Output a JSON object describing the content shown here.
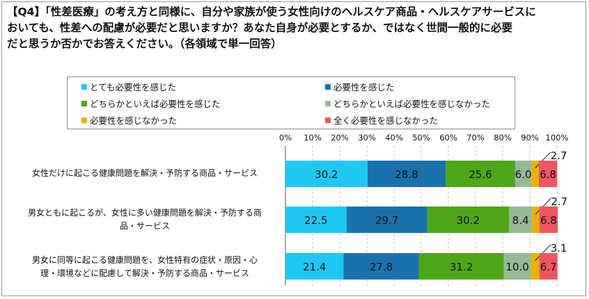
{
  "question": {
    "lines": [
      "【Q4】「性差医療」の考え方と同様に、自分や家族が使う女性向けのヘルスケア商品・ヘルスケアサービスに",
      "おいても、性差への配慮が必要だと思いますか？あなた自身が必要とするか、ではなく世間一般的に必要",
      "だと思うか否かでお答えください。（各領域で単一回答）"
    ]
  },
  "chart_data": {
    "type": "stacked-bar-horizontal",
    "xlim": [
      0,
      100
    ],
    "x_ticks": [
      "0%",
      "10%",
      "20%",
      "30%",
      "40%",
      "50%",
      "60%",
      "70%",
      "80%",
      "90%",
      "100%"
    ],
    "legend_position": "top",
    "categories": [
      "女性だけに起こる健康問題を解決・予防する商品・サービス",
      "男女ともに起こるが、女性に多い健康問題を解決・予防する商品・サービス",
      "男女に同等に起こる健康問題を、女性特有の症状・原因・心理・環境などに配慮して解決・予防する商品・サービス"
    ],
    "category_display_lines": [
      [
        "女性だけに起こる健康問題を解決・予防する商品・サービス"
      ],
      [
        "男女ともに起こるが、女性に多い健康問題を解決・予防する商",
        "品・サービス"
      ],
      [
        "男女に同等に起こる健康問題を、女性特有の症状・原因・心",
        "理・環境などに配慮して解決・予防する商品・サービス"
      ]
    ],
    "series": [
      {
        "name": "とても必要性を感じた",
        "color": "#1fc8f2",
        "values": [
          30.2,
          22.5,
          21.4
        ]
      },
      {
        "name": "必要性を感じた",
        "color": "#1a72ad",
        "values": [
          28.8,
          29.7,
          27.8
        ]
      },
      {
        "name": "どちらかといえば必要性を感じた",
        "color": "#4ea619",
        "values": [
          25.6,
          30.2,
          31.2
        ]
      },
      {
        "name": "どちらかといえば必要性を感じなかった",
        "color": "#96b996",
        "values": [
          6.0,
          8.4,
          10.0
        ]
      },
      {
        "name": "必要性を感じなかった",
        "color": "#e8b100",
        "values": [
          2.7,
          2.7,
          3.1
        ]
      },
      {
        "name": "全く必要性を感じなかった",
        "color": "#f0555f",
        "values": [
          6.8,
          6.8,
          6.7
        ]
      }
    ]
  }
}
